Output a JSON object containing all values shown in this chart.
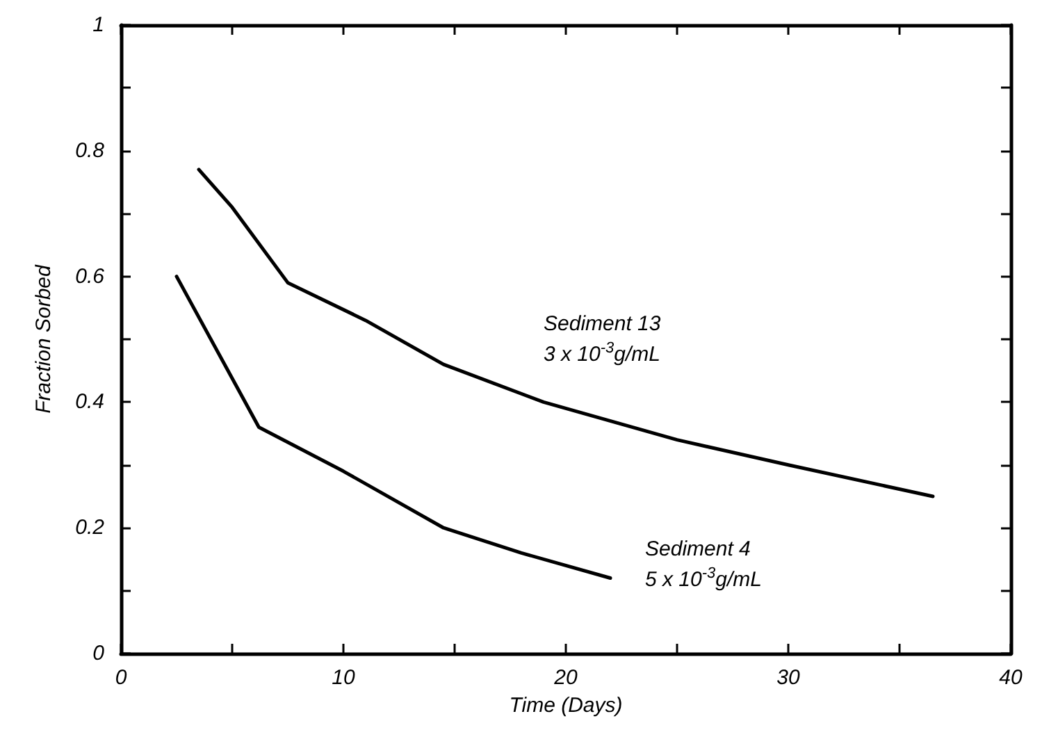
{
  "chart_data": {
    "type": "line",
    "xlabel": "Time (Days)",
    "ylabel": "Fraction Sorbed",
    "series": [
      {
        "name": "Sediment 13",
        "color": "#000000",
        "x": [
          3.5,
          5,
          7.5,
          11,
          14.5,
          19,
          25,
          30,
          36.5
        ],
        "values": [
          0.77,
          0.71,
          0.59,
          0.53,
          0.46,
          0.4,
          0.34,
          0.3,
          0.25
        ]
      },
      {
        "name": "Sediment 4",
        "color": "#000000",
        "x": [
          2.5,
          6.2,
          10,
          14.5,
          18,
          22
        ],
        "values": [
          0.6,
          0.36,
          0.29,
          0.2,
          0.16,
          0.12
        ]
      }
    ],
    "annotations": [
      "3 x 10$^{-3}$g/mL",
      "5 x 10$^{-3}$g/mL"
    ],
    "xlim": [
      0,
      40
    ],
    "ylim": [
      0,
      1
    ],
    "xticks": [
      0,
      {
        "value": 5,
        "label": null
      },
      10,
      {
        "value": 15,
        "label": null
      },
      20,
      {
        "value": 25,
        "label": null
      },
      30,
      {
        "value": 35,
        "label": null
      },
      40
    ],
    "yticks": [
      0,
      {
        "value": 0.1,
        "label": null
      },
      0.2,
      {
        "value": 0.3,
        "label": null
      },
      0.4,
      {
        "value": 0.5,
        "label": null
      },
      0.6,
      {
        "value": 0.7,
        "label": null
      },
      0.8,
      {
        "value": 0.9,
        "label": null
      },
      1
    ],
    "grid": false,
    "marker": "none",
    "line_style": "solid"
  }
}
